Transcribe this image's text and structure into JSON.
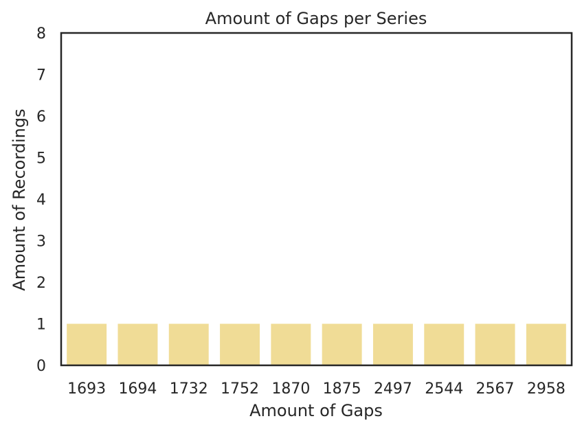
{
  "chart_data": {
    "type": "bar",
    "title": "Amount of Gaps per Series",
    "xlabel": "Amount of Gaps",
    "ylabel": "Amount of Recordings",
    "categories": [
      "1693",
      "1694",
      "1732",
      "1752",
      "1870",
      "1875",
      "2497",
      "2544",
      "2567",
      "2958"
    ],
    "values": [
      1,
      1,
      1,
      1,
      1,
      1,
      1,
      1,
      1,
      1
    ],
    "ylim": [
      0,
      8
    ],
    "yticks": [
      0,
      1,
      2,
      3,
      4,
      5,
      6,
      7,
      8
    ],
    "grid": false,
    "legend": "none",
    "bar_color": "#f0dc96",
    "frame_color": "#262626"
  }
}
